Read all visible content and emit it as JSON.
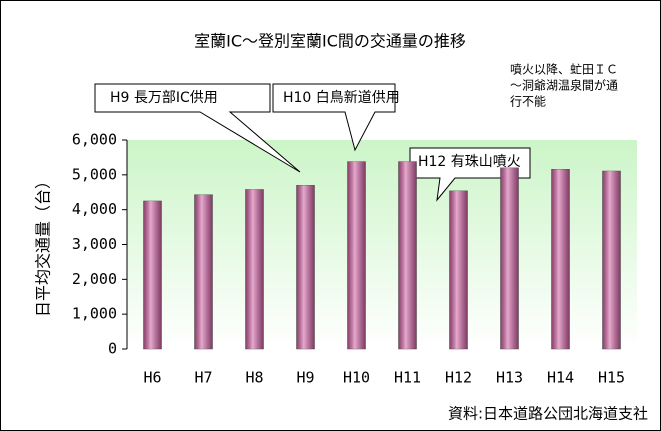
{
  "chart_data": {
    "type": "bar",
    "title": "室蘭IC〜登別室蘭IC間の交通量の推移",
    "y_label": "日平均交通量（台）",
    "categories": [
      "H6",
      "H7",
      "H8",
      "H9",
      "H10",
      "H11",
      "H12",
      "H13",
      "H14",
      "H15"
    ],
    "values": [
      4250,
      4430,
      4580,
      4700,
      5380,
      5380,
      4540,
      5200,
      5160,
      5110
    ],
    "color": "#d462a6",
    "ylim": [
      0,
      6000
    ],
    "yticks": [
      0,
      {
        "value": 1000,
        "label": "1,000"
      },
      {
        "value": 2000,
        "label": "2,000"
      },
      {
        "value": 3000,
        "label": "3,000"
      },
      {
        "value": 4000,
        "label": "4,000"
      },
      {
        "value": 5000,
        "label": "5,000"
      },
      {
        "value": 6000,
        "label": "6,000"
      }
    ],
    "grid": false,
    "annotations": [
      "H9 長万部IC供用",
      "H10 白鳥新道供用",
      "H12 有珠山噴火"
    ],
    "note": [
      "噴火以降、虻田ＩＣ",
      "〜洞爺湖温泉間が通",
      "行不能"
    ],
    "source": "資料:日本道路公団北海道支社"
  }
}
